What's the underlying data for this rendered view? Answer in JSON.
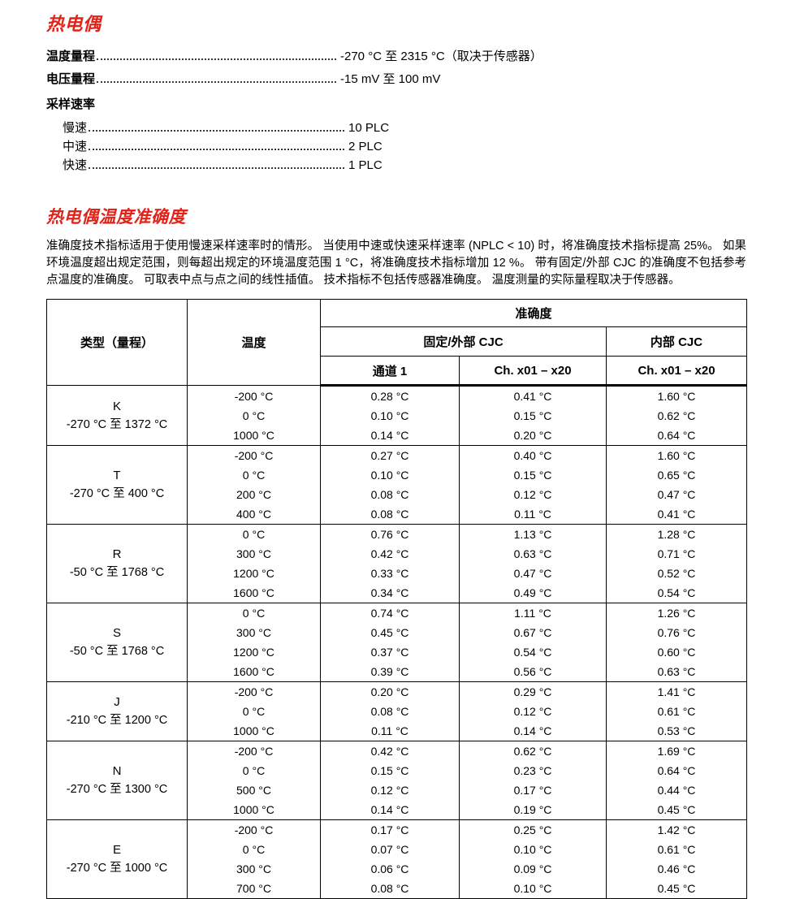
{
  "page": {
    "title": "热电偶"
  },
  "colors": {
    "accent_red": "#e2231a",
    "text": "#000000",
    "table_border": "#000000"
  },
  "specs": [
    {
      "label": "温度量程",
      "value": "-270 °C 至 2315 °C（取决于传感器）"
    },
    {
      "label": "电压量程",
      "value": "-15 mV 至 100 mV"
    },
    {
      "label": "采样速率",
      "value": ""
    },
    {
      "label": "慢速",
      "value": "10 PLC"
    },
    {
      "label": "中速",
      "value": "2 PLC"
    },
    {
      "label": "快速",
      "value": "1 PLC"
    }
  ],
  "accuracy_section": {
    "heading": "热电偶温度准确度",
    "paragraph": "准确度技术指标适用于使用慢速采样速率时的情形。 当使用中速或快速采样速率 (NPLC < 10) 时，将准确度技术指标提高 25%。 如果环境温度超出规定范围，则每超出规定的环境温度范围 1 °C，将准确度技术指标增加 12 %。 带有固定/外部 CJC 的准确度不包括参考点温度的准确度。 可取表中点与点之间的线性插值。 技术指标不包括传感器准确度。 温度测量的实际量程取决于传感器。"
  },
  "table": {
    "headers": {
      "type": "类型（量程）",
      "temperature": "温度",
      "accuracy": "准确度",
      "fixed_external_cjc": "固定/外部 CJC",
      "internal_cjc": "内部 CJC",
      "channel_1": "通道 1",
      "ch_x01_x20_fixed": "Ch. x01 – x20",
      "ch_x01_x20_internal": "Ch. x01 – x20"
    },
    "sections": [
      {
        "type": "K",
        "range": "-270 °C 至 1372 °C",
        "rows": [
          {
            "temp": "-200 °C",
            "ch1": "0.28 °C",
            "chx": "0.41 °C",
            "int": "1.60 °C"
          },
          {
            "temp": "0 °C",
            "ch1": "0.10 °C",
            "chx": "0.15 °C",
            "int": "0.62 °C"
          },
          {
            "temp": "1000 °C",
            "ch1": "0.14 °C",
            "chx": "0.20 °C",
            "int": "0.64 °C"
          }
        ]
      },
      {
        "type": "T",
        "range": "-270 °C 至 400 °C",
        "rows": [
          {
            "temp": "-200 °C",
            "ch1": "0.27 °C",
            "chx": "0.40 °C",
            "int": "1.60 °C"
          },
          {
            "temp": "0 °C",
            "ch1": "0.10 °C",
            "chx": "0.15 °C",
            "int": "0.65 °C"
          },
          {
            "temp": "200 °C",
            "ch1": "0.08 °C",
            "chx": "0.12 °C",
            "int": "0.47 °C"
          },
          {
            "temp": "400 °C",
            "ch1": "0.08 °C",
            "chx": "0.11 °C",
            "int": "0.41 °C"
          }
        ]
      },
      {
        "type": "R",
        "range": "-50 °C 至 1768 °C",
        "rows": [
          {
            "temp": "0 °C",
            "ch1": "0.76 °C",
            "chx": "1.13 °C",
            "int": "1.28 °C"
          },
          {
            "temp": "300 °C",
            "ch1": "0.42 °C",
            "chx": "0.63 °C",
            "int": "0.71 °C"
          },
          {
            "temp": "1200 °C",
            "ch1": "0.33 °C",
            "chx": "0.47 °C",
            "int": "0.52 °C"
          },
          {
            "temp": "1600 °C",
            "ch1": "0.34 °C",
            "chx": "0.49 °C",
            "int": "0.54 °C"
          }
        ]
      },
      {
        "type": "S",
        "range": "-50 °C 至 1768 °C",
        "rows": [
          {
            "temp": "0 °C",
            "ch1": "0.74 °C",
            "chx": "1.11 °C",
            "int": "1.26 °C"
          },
          {
            "temp": "300 °C",
            "ch1": "0.45 °C",
            "chx": "0.67 °C",
            "int": "0.76 °C"
          },
          {
            "temp": "1200 °C",
            "ch1": "0.37 °C",
            "chx": "0.54 °C",
            "int": "0.60 °C"
          },
          {
            "temp": "1600 °C",
            "ch1": "0.39 °C",
            "chx": "0.56 °C",
            "int": "0.63 °C"
          }
        ]
      },
      {
        "type": "J",
        "range": "-210 °C 至 1200 °C",
        "rows": [
          {
            "temp": "-200 °C",
            "ch1": "0.20 °C",
            "chx": "0.29 °C",
            "int": "1.41 °C"
          },
          {
            "temp": "0 °C",
            "ch1": "0.08 °C",
            "chx": "0.12 °C",
            "int": "0.61 °C"
          },
          {
            "temp": "1000 °C",
            "ch1": "0.11 °C",
            "chx": "0.14 °C",
            "int": "0.53 °C"
          }
        ]
      },
      {
        "type": "N",
        "range": "-270 °C 至 1300 °C",
        "rows": [
          {
            "temp": "-200 °C",
            "ch1": "0.42 °C",
            "chx": "0.62 °C",
            "int": "1.69 °C"
          },
          {
            "temp": "0 °C",
            "ch1": "0.15 °C",
            "chx": "0.23 °C",
            "int": "0.64 °C"
          },
          {
            "temp": "500 °C",
            "ch1": "0.12 °C",
            "chx": "0.17 °C",
            "int": "0.44 °C"
          },
          {
            "temp": "1000 °C",
            "ch1": "0.14 °C",
            "chx": "0.19 °C",
            "int": "0.45 °C"
          }
        ]
      },
      {
        "type": "E",
        "range": "-270 °C 至 1000 °C",
        "rows": [
          {
            "temp": "-200 °C",
            "ch1": "0.17 °C",
            "chx": "0.25 °C",
            "int": "1.42 °C"
          },
          {
            "temp": "0 °C",
            "ch1": "0.07 °C",
            "chx": "0.10 °C",
            "int": "0.61 °C"
          },
          {
            "temp": "300 °C",
            "ch1": "0.06 °C",
            "chx": "0.09 °C",
            "int": "0.46 °C"
          },
          {
            "temp": "700 °C",
            "ch1": "0.08 °C",
            "chx": "0.10 °C",
            "int": "0.45 °C"
          }
        ]
      }
    ]
  }
}
